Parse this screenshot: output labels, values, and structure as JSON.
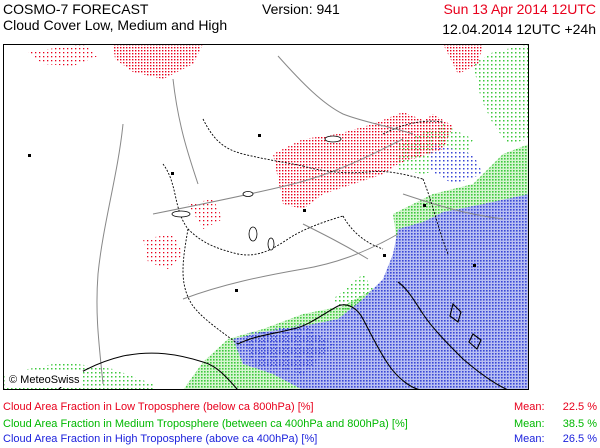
{
  "header": {
    "model": "COSMO-7 FORECAST",
    "subtitle": "Cloud Cover Low, Medium and High",
    "version": "Version: 941",
    "valid_date": "Sun 13 Apr 2014 12UTC",
    "run": "12.04.2014 12UTC +24h",
    "valid_date_color": "#e8001c"
  },
  "map": {
    "copyright": "© MeteoSwiss",
    "background": "#ffffff",
    "border_color": "#000000",
    "coast_color": "#000000",
    "country_border_color": "#000000",
    "river_color": "#888888"
  },
  "legend": [
    {
      "label": "Cloud Area Fraction in Low Troposphere (below ca 800hPa) [%]",
      "mean_label": "Mean:",
      "mean": "22.5 %",
      "color": "#e8001c"
    },
    {
      "label": "Cloud Area Fraction in Medium Troposphere (between ca 400hPa and 800hPa) [%]",
      "mean_label": "Mean:",
      "mean": "38.5 %",
      "color": "#00b800"
    },
    {
      "label": "Cloud Area Fraction in High Troposphere (above ca 400hPa) [%]",
      "mean_label": "Mean:",
      "mean": "26.5 %",
      "color": "#1c22dc"
    }
  ]
}
